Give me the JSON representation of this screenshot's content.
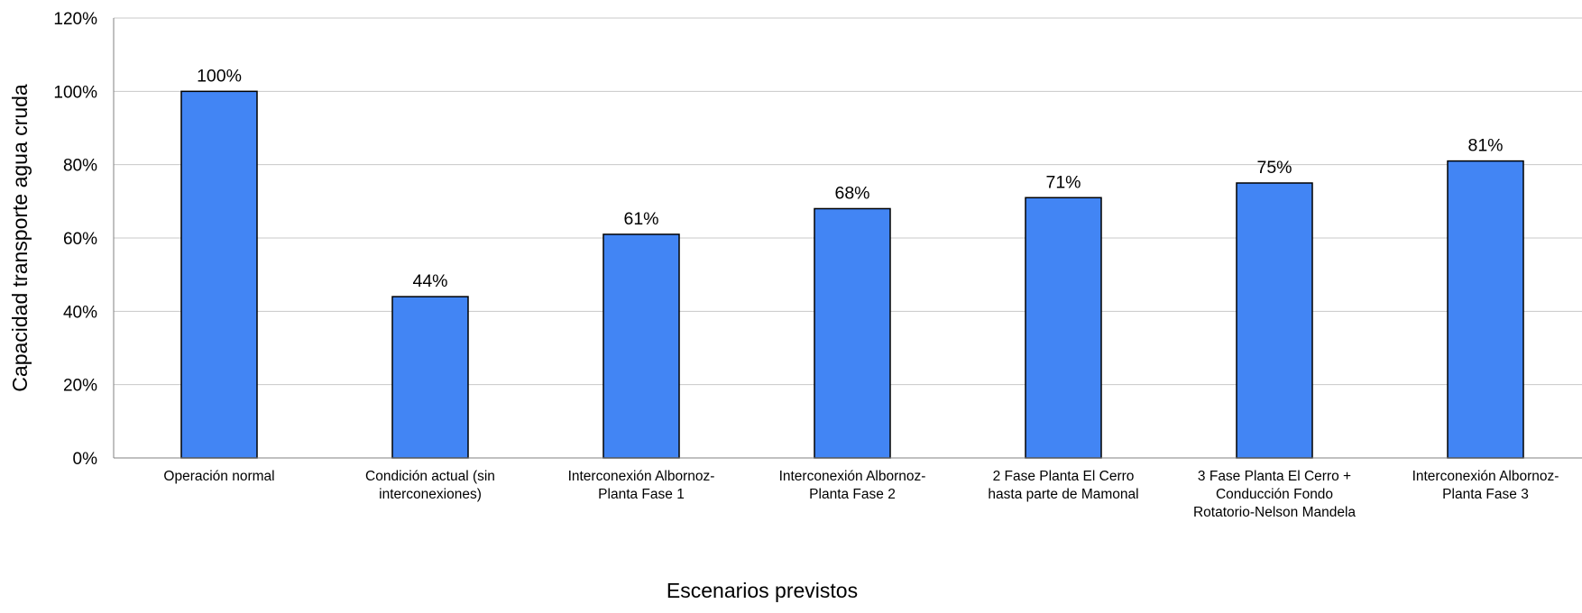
{
  "chart_data": {
    "type": "bar",
    "title": "",
    "xlabel": "Escenarios previstos",
    "ylabel": "Capacidad transporte agua cruda",
    "ylim": [
      0,
      120
    ],
    "yticks": [
      0,
      20,
      40,
      60,
      80,
      100,
      120
    ],
    "ytick_labels": [
      "0%",
      "20%",
      "40%",
      "60%",
      "80%",
      "100%",
      "120%"
    ],
    "grid": true,
    "legend": "none",
    "bar_color": "#4285F4",
    "categories": [
      [
        "Operación normal"
      ],
      [
        "Condición actual (sin",
        "interconexiones)"
      ],
      [
        "Interconexión Albornoz-",
        "Planta Fase 1"
      ],
      [
        "Interconexión Albornoz-",
        "Planta Fase 2"
      ],
      [
        "2 Fase Planta El Cerro",
        "hasta parte de Mamonal"
      ],
      [
        "3 Fase Planta El Cerro +",
        "Conducción Fondo",
        "Rotatorio-Nelson Mandela"
      ],
      [
        "Interconexión Albornoz-",
        "Planta Fase 3"
      ]
    ],
    "values": [
      100,
      44,
      61,
      68,
      71,
      75,
      81
    ],
    "data_labels": [
      "100%",
      "44%",
      "61%",
      "68%",
      "71%",
      "75%",
      "81%"
    ]
  }
}
